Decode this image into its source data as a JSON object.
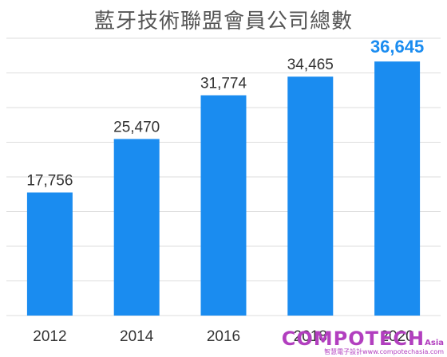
{
  "chart_data": {
    "type": "bar",
    "title": "藍牙技術聯盟會員公司總數",
    "categories": [
      "2012",
      "2014",
      "2016",
      "2018",
      "2020"
    ],
    "values": [
      17756,
      25470,
      31774,
      34465,
      36645
    ],
    "value_labels": [
      "17,756",
      "25,470",
      "31,774",
      "34,465",
      "36,645"
    ],
    "highlight_index": 4,
    "ylim": [
      0,
      40000
    ],
    "grid": true,
    "bar_color": "#1a8cf0",
    "label_color": "#333333",
    "highlight_label_color": "#1a8cf0",
    "grid_color": "#dddddd"
  },
  "watermark": {
    "main": "COMPOTECH",
    "sup": "Asia",
    "sub": "智慧電子設計www.compotechasia.com"
  }
}
